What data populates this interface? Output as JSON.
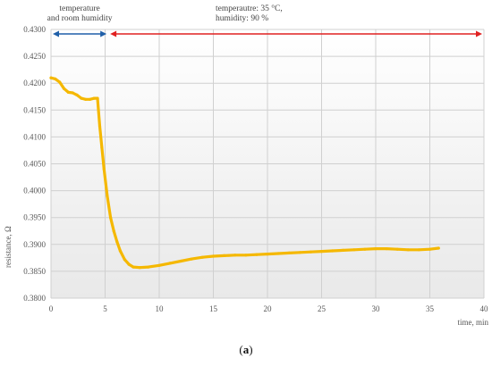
{
  "chart_data": {
    "type": "line",
    "title": "",
    "xlabel": "time, min",
    "ylabel": "resistance, Ω",
    "xlim": [
      0,
      40
    ],
    "ylim": [
      0.38,
      0.43
    ],
    "x_ticks": [
      "0",
      "5",
      "10",
      "15",
      "20",
      "25",
      "30",
      "35",
      "40"
    ],
    "y_ticks": [
      "0.3800",
      "0.3850",
      "0.3900",
      "0.3950",
      "0.4000",
      "0.4050",
      "0.4100",
      "0.4150",
      "0.4200",
      "0.4250",
      "0.4300"
    ],
    "grid": true,
    "series": [
      {
        "color": "#F5B800",
        "points": [
          [
            0.0,
            0.421
          ],
          [
            0.4,
            0.4208
          ],
          [
            0.8,
            0.4202
          ],
          [
            1.2,
            0.419
          ],
          [
            1.6,
            0.4183
          ],
          [
            2.0,
            0.4182
          ],
          [
            2.4,
            0.4178
          ],
          [
            2.8,
            0.4172
          ],
          [
            3.2,
            0.417
          ],
          [
            3.6,
            0.417
          ],
          [
            4.0,
            0.4172
          ],
          [
            4.3,
            0.4172
          ],
          [
            4.5,
            0.412
          ],
          [
            4.7,
            0.408
          ],
          [
            4.9,
            0.404
          ],
          [
            5.2,
            0.399
          ],
          [
            5.5,
            0.395
          ],
          [
            5.8,
            0.3925
          ],
          [
            6.1,
            0.3905
          ],
          [
            6.4,
            0.3888
          ],
          [
            6.8,
            0.3872
          ],
          [
            7.2,
            0.3863
          ],
          [
            7.6,
            0.3858
          ],
          [
            8.2,
            0.3857
          ],
          [
            9.0,
            0.3858
          ],
          [
            10.0,
            0.3861
          ],
          [
            11.0,
            0.3865
          ],
          [
            12.0,
            0.3869
          ],
          [
            13.0,
            0.3873
          ],
          [
            14.0,
            0.3876
          ],
          [
            15.0,
            0.3878
          ],
          [
            16.0,
            0.3879
          ],
          [
            17.0,
            0.388
          ],
          [
            18.0,
            0.388
          ],
          [
            19.0,
            0.3881
          ],
          [
            20.0,
            0.3882
          ],
          [
            21.0,
            0.3883
          ],
          [
            22.0,
            0.3884
          ],
          [
            23.0,
            0.3885
          ],
          [
            24.0,
            0.3886
          ],
          [
            25.0,
            0.3887
          ],
          [
            26.0,
            0.3888
          ],
          [
            27.0,
            0.3889
          ],
          [
            28.0,
            0.389
          ],
          [
            29.0,
            0.3891
          ],
          [
            30.0,
            0.3892
          ],
          [
            31.0,
            0.3892
          ],
          [
            32.0,
            0.3891
          ],
          [
            33.0,
            0.389
          ],
          [
            34.0,
            0.389
          ],
          [
            35.0,
            0.3891
          ],
          [
            35.8,
            0.3893
          ]
        ]
      }
    ],
    "annotations": [
      {
        "text_lines": [
          "temperature",
          "and room humidity"
        ],
        "arrow_color": "#1F5FA8",
        "x_from": 0,
        "x_to": 5.3
      },
      {
        "text_lines": [
          "temperautre: 35 °C,",
          "humidity: 90 %"
        ],
        "arrow_color": "#E02020",
        "x_from": 5.3,
        "x_to": 40
      }
    ]
  },
  "caption_prefix": "(",
  "caption_label": "a",
  "caption_suffix": ")"
}
